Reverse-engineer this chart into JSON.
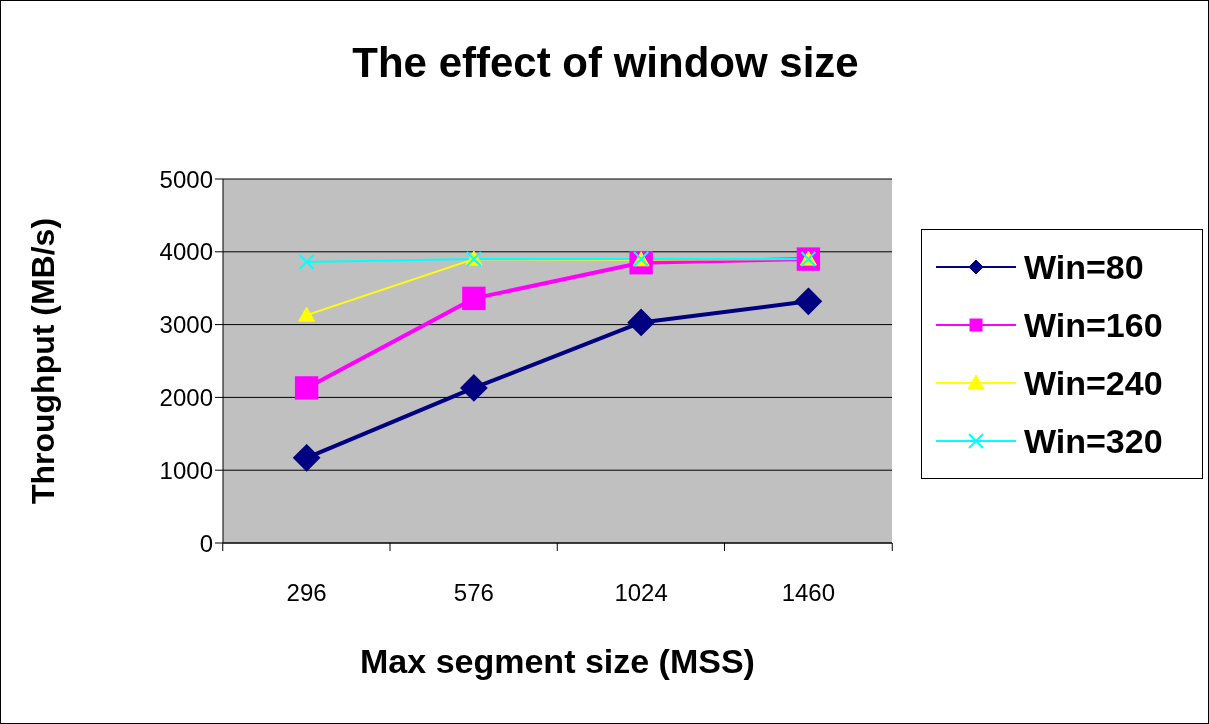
{
  "chart_data": {
    "type": "line",
    "title": "The effect of window size",
    "xlabel": "Max segment size (MSS)",
    "ylabel": "Throughput (MB/s)",
    "categories": [
      "296",
      "576",
      "1024",
      "1460"
    ],
    "series": [
      {
        "name": "Win=80",
        "color": "#000080",
        "marker": "diamond",
        "values": [
          1170,
          2130,
          3030,
          3320
        ]
      },
      {
        "name": "Win=160",
        "color": "#ff00ff",
        "marker": "square",
        "values": [
          2130,
          3360,
          3850,
          3900
        ]
      },
      {
        "name": "Win=240",
        "color": "#ffff00",
        "marker": "triangle",
        "values": [
          3130,
          3900,
          3890,
          3900
        ]
      },
      {
        "name": "Win=320",
        "color": "#00ffff",
        "marker": "cross",
        "values": [
          3860,
          3900,
          3900,
          3900
        ]
      }
    ],
    "ylim": [
      0,
      5000
    ],
    "yticks": [
      0,
      1000,
      2000,
      3000,
      4000,
      5000
    ],
    "grid": "y",
    "legend": "right",
    "line_style": "solid"
  }
}
